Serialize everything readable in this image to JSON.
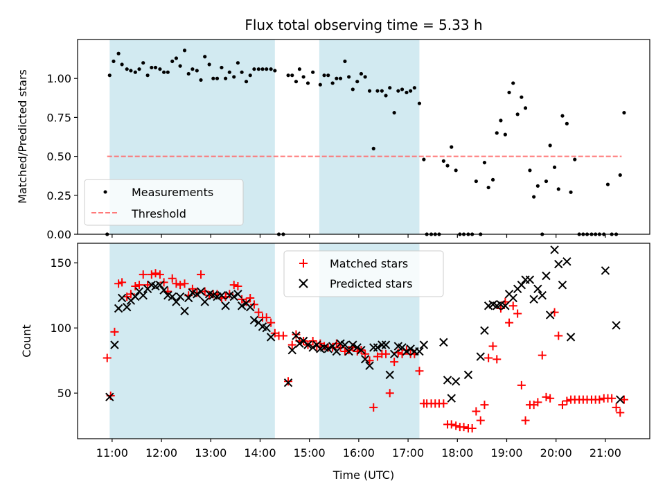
{
  "chart_data": [
    {
      "type": "scatter",
      "title": "Flux total observing time = 5.33 h",
      "xlabel": "",
      "ylabel": "Matched/Predicted stars",
      "xlim": [
        10.3,
        21.9
      ],
      "ylim": [
        0.0,
        1.25
      ],
      "yticks": [
        0.0,
        0.25,
        0.5,
        0.75,
        1.0
      ],
      "ytick_labels": [
        "0.00",
        "0.25",
        "0.50",
        "0.75",
        "1.00"
      ],
      "shaded_intervals": [
        [
          10.95,
          14.3
        ],
        [
          15.2,
          17.23
        ]
      ],
      "threshold": {
        "label": "Threshold",
        "value": 0.5,
        "x_range": [
          10.9,
          21.33
        ]
      },
      "legend": [
        "Measurements",
        "Threshold"
      ],
      "series": [
        {
          "name": "Measurements",
          "points": [
            [
              10.9,
              0.0
            ],
            [
              10.95,
              1.02
            ],
            [
              11.03,
              1.11
            ],
            [
              11.13,
              1.16
            ],
            [
              11.2,
              1.09
            ],
            [
              11.3,
              1.06
            ],
            [
              11.38,
              1.05
            ],
            [
              11.47,
              1.04
            ],
            [
              11.55,
              1.06
            ],
            [
              11.63,
              1.1
            ],
            [
              11.72,
              1.02
            ],
            [
              11.8,
              1.07
            ],
            [
              11.88,
              1.07
            ],
            [
              11.97,
              1.06
            ],
            [
              12.05,
              1.04
            ],
            [
              12.13,
              1.04
            ],
            [
              12.22,
              1.11
            ],
            [
              12.3,
              1.13
            ],
            [
              12.38,
              1.08
            ],
            [
              12.47,
              1.18
            ],
            [
              12.55,
              1.03
            ],
            [
              12.63,
              1.06
            ],
            [
              12.72,
              1.05
            ],
            [
              12.8,
              0.99
            ],
            [
              12.88,
              1.14
            ],
            [
              12.97,
              1.09
            ],
            [
              13.05,
              1.0
            ],
            [
              13.13,
              1.0
            ],
            [
              13.22,
              1.07
            ],
            [
              13.3,
              1.0
            ],
            [
              13.38,
              1.04
            ],
            [
              13.47,
              1.01
            ],
            [
              13.55,
              1.1
            ],
            [
              13.63,
              1.04
            ],
            [
              13.72,
              0.98
            ],
            [
              13.8,
              1.02
            ],
            [
              13.88,
              1.06
            ],
            [
              13.97,
              1.06
            ],
            [
              14.05,
              1.06
            ],
            [
              14.13,
              1.06
            ],
            [
              14.22,
              1.06
            ],
            [
              14.3,
              1.05
            ],
            [
              14.38,
              0.0
            ],
            [
              14.47,
              0.0
            ],
            [
              14.57,
              1.02
            ],
            [
              14.65,
              1.02
            ],
            [
              14.73,
              0.98
            ],
            [
              14.8,
              1.06
            ],
            [
              14.88,
              1.01
            ],
            [
              14.97,
              0.97
            ],
            [
              15.07,
              1.04
            ],
            [
              15.22,
              0.96
            ],
            [
              15.3,
              1.02
            ],
            [
              15.38,
              1.02
            ],
            [
              15.47,
              0.97
            ],
            [
              15.55,
              1.0
            ],
            [
              15.63,
              1.0
            ],
            [
              15.72,
              1.11
            ],
            [
              15.8,
              1.01
            ],
            [
              15.88,
              0.93
            ],
            [
              15.97,
              0.98
            ],
            [
              16.05,
              1.03
            ],
            [
              16.13,
              1.01
            ],
            [
              16.22,
              0.92
            ],
            [
              16.3,
              0.55
            ],
            [
              16.38,
              0.92
            ],
            [
              16.47,
              0.92
            ],
            [
              16.55,
              0.89
            ],
            [
              16.63,
              0.94
            ],
            [
              16.72,
              0.78
            ],
            [
              16.8,
              0.92
            ],
            [
              16.88,
              0.93
            ],
            [
              16.97,
              0.91
            ],
            [
              17.05,
              0.92
            ],
            [
              17.13,
              0.94
            ],
            [
              17.23,
              0.84
            ],
            [
              17.32,
              0.48
            ],
            [
              17.38,
              0.0
            ],
            [
              17.47,
              0.0
            ],
            [
              17.55,
              0.0
            ],
            [
              17.63,
              0.0
            ],
            [
              17.72,
              0.47
            ],
            [
              17.8,
              0.44
            ],
            [
              17.88,
              0.56
            ],
            [
              17.97,
              0.41
            ],
            [
              18.05,
              0.0
            ],
            [
              18.13,
              0.0
            ],
            [
              18.22,
              0.0
            ],
            [
              18.3,
              0.0
            ],
            [
              18.38,
              0.34
            ],
            [
              18.47,
              0.0
            ],
            [
              18.55,
              0.46
            ],
            [
              18.63,
              0.3
            ],
            [
              18.72,
              0.35
            ],
            [
              18.8,
              0.65
            ],
            [
              18.88,
              0.73
            ],
            [
              18.97,
              0.64
            ],
            [
              19.05,
              0.91
            ],
            [
              19.13,
              0.97
            ],
            [
              19.22,
              0.77
            ],
            [
              19.3,
              0.88
            ],
            [
              19.38,
              0.81
            ],
            [
              19.47,
              0.41
            ],
            [
              19.55,
              0.24
            ],
            [
              19.63,
              0.31
            ],
            [
              19.72,
              0.0
            ],
            [
              19.8,
              0.34
            ],
            [
              19.88,
              0.57
            ],
            [
              19.97,
              0.43
            ],
            [
              20.05,
              0.29
            ],
            [
              20.13,
              0.76
            ],
            [
              20.22,
              0.71
            ],
            [
              20.3,
              0.27
            ],
            [
              20.38,
              0.48
            ],
            [
              20.47,
              0.0
            ],
            [
              20.55,
              0.0
            ],
            [
              20.63,
              0.0
            ],
            [
              20.72,
              0.0
            ],
            [
              20.8,
              0.0
            ],
            [
              20.88,
              0.0
            ],
            [
              20.97,
              0.0
            ],
            [
              21.05,
              0.32
            ],
            [
              21.13,
              0.0
            ],
            [
              21.22,
              0.0
            ],
            [
              21.3,
              0.38
            ],
            [
              21.38,
              0.78
            ]
          ]
        }
      ]
    },
    {
      "type": "scatter",
      "title": "",
      "xlabel": "Time (UTC)",
      "ylabel": "Count",
      "xlim": [
        10.3,
        21.9
      ],
      "ylim": [
        15,
        165
      ],
      "xticks": [
        11,
        12,
        13,
        14,
        15,
        16,
        17,
        18,
        19,
        20,
        21
      ],
      "xtick_labels": [
        "11:00",
        "12:00",
        "13:00",
        "14:00",
        "15:00",
        "16:00",
        "17:00",
        "18:00",
        "19:00",
        "20:00",
        "21:00"
      ],
      "yticks": [
        50,
        100,
        150
      ],
      "ytick_labels": [
        "50",
        "100",
        "150"
      ],
      "shaded_intervals": [
        [
          10.95,
          14.3
        ],
        [
          15.2,
          17.23
        ]
      ],
      "legend": [
        "Matched stars",
        "Predicted stars"
      ],
      "series": [
        {
          "name": "Matched stars",
          "x": [
            10.9,
            10.97,
            11.05,
            11.13,
            11.2,
            11.3,
            11.38,
            11.47,
            11.55,
            11.63,
            11.72,
            11.8,
            11.88,
            11.97,
            12.05,
            12.13,
            12.22,
            12.3,
            12.38,
            12.47,
            12.55,
            12.63,
            12.72,
            12.8,
            12.88,
            12.97,
            13.05,
            13.13,
            13.22,
            13.3,
            13.38,
            13.47,
            13.55,
            13.63,
            13.72,
            13.8,
            13.88,
            13.97,
            14.05,
            14.13,
            14.22,
            14.3,
            14.38,
            14.47,
            14.57,
            14.65,
            14.73,
            14.8,
            14.88,
            14.97,
            15.07,
            15.15,
            15.22,
            15.3,
            15.38,
            15.47,
            15.55,
            15.63,
            15.72,
            15.8,
            15.88,
            15.97,
            16.05,
            16.13,
            16.22,
            16.3,
            16.38,
            16.47,
            16.55,
            16.63,
            16.72,
            16.8,
            16.88,
            16.97,
            17.05,
            17.13,
            17.23,
            17.32,
            17.38,
            17.47,
            17.55,
            17.63,
            17.72,
            17.8,
            17.88,
            17.97,
            18.05,
            18.13,
            18.22,
            18.3,
            18.38,
            18.47,
            18.55,
            18.63,
            18.72,
            18.8,
            18.88,
            18.97,
            19.05,
            19.13,
            19.22,
            19.3,
            19.38,
            19.47,
            19.55,
            19.63,
            19.72,
            19.8,
            19.88,
            19.97,
            20.05,
            20.13,
            20.22,
            20.3,
            20.38,
            20.47,
            20.55,
            20.63,
            20.72,
            20.8,
            20.88,
            20.97,
            21.05,
            21.13,
            21.22,
            21.3,
            21.38
          ],
          "values": [
            77,
            48,
            97,
            134,
            135,
            124,
            126,
            132,
            133,
            141,
            133,
            141,
            142,
            141,
            135,
            128,
            138,
            134,
            133,
            134,
            125,
            130,
            127,
            141,
            128,
            125,
            126,
            126,
            123,
            124,
            126,
            133,
            132,
            122,
            120,
            123,
            118,
            112,
            108,
            108,
            104,
            96,
            94,
            94,
            59,
            87,
            95,
            90,
            90,
            87,
            90,
            86,
            88,
            86,
            85,
            85,
            88,
            85,
            82,
            83,
            85,
            82,
            83,
            80,
            75,
            39,
            78,
            80,
            80,
            50,
            74,
            81,
            80,
            83,
            80,
            80,
            67,
            42,
            42,
            42,
            42,
            42,
            42,
            26,
            26,
            25,
            24,
            24,
            23,
            23,
            36,
            29,
            41,
            77,
            86,
            76,
            115,
            120,
            104,
            117,
            111,
            56,
            29,
            41,
            41,
            43,
            79,
            47,
            46,
            112,
            94,
            41,
            44,
            45,
            45,
            45,
            45,
            45,
            45,
            45,
            45,
            46,
            46,
            46,
            39,
            35,
            45
          ]
        },
        {
          "name": "Predicted stars",
          "x": [
            10.95,
            11.05,
            11.13,
            11.2,
            11.3,
            11.38,
            11.47,
            11.55,
            11.63,
            11.72,
            11.8,
            11.88,
            11.97,
            12.05,
            12.13,
            12.22,
            12.3,
            12.38,
            12.47,
            12.55,
            12.63,
            12.72,
            12.8,
            12.88,
            12.97,
            13.05,
            13.13,
            13.22,
            13.3,
            13.38,
            13.47,
            13.55,
            13.63,
            13.72,
            13.8,
            13.88,
            13.97,
            14.05,
            14.13,
            14.22,
            14.57,
            14.65,
            14.73,
            14.8,
            14.88,
            14.97,
            15.07,
            15.15,
            15.22,
            15.3,
            15.38,
            15.47,
            15.55,
            15.63,
            15.72,
            15.8,
            15.88,
            15.97,
            16.05,
            16.13,
            16.22,
            16.3,
            16.38,
            16.47,
            16.55,
            16.63,
            16.72,
            16.8,
            16.88,
            16.97,
            17.05,
            17.13,
            17.23,
            17.32,
            17.72,
            17.8,
            17.88,
            17.97,
            18.22,
            18.47,
            18.55,
            18.63,
            18.72,
            18.8,
            18.88,
            18.97,
            19.05,
            19.13,
            19.22,
            19.3,
            19.38,
            19.47,
            19.55,
            19.63,
            19.72,
            19.8,
            19.88,
            19.97,
            20.05,
            20.13,
            20.22,
            20.3,
            21.0,
            21.22,
            21.3
          ],
          "values": [
            47,
            87,
            115,
            123,
            116,
            121,
            124,
            128,
            125,
            130,
            133,
            132,
            133,
            129,
            125,
            124,
            120,
            124,
            113,
            123,
            127,
            126,
            128,
            120,
            126,
            125,
            124,
            125,
            117,
            125,
            124,
            126,
            117,
            119,
            116,
            106,
            104,
            101,
            100,
            93,
            58,
            83,
            94,
            88,
            90,
            87,
            85,
            87,
            84,
            85,
            84,
            86,
            82,
            88,
            87,
            82,
            87,
            85,
            83,
            76,
            71,
            85,
            85,
            87,
            87,
            64,
            80,
            86,
            85,
            82,
            84,
            82,
            82,
            87,
            89,
            60,
            46,
            59,
            64,
            78,
            98,
            117,
            118,
            117,
            118,
            117,
            126,
            123,
            130,
            133,
            137,
            137,
            122,
            130,
            125,
            140,
            110,
            160,
            149,
            133,
            151,
            93,
            144,
            102,
            45
          ]
        }
      ]
    }
  ]
}
